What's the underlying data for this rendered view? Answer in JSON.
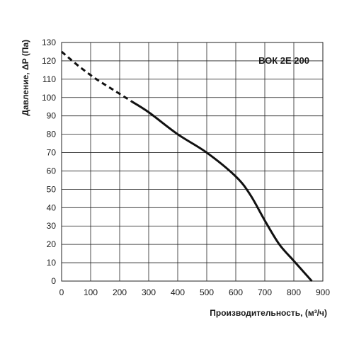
{
  "chart_data": {
    "type": "line",
    "title": "ВОК 2Е 200",
    "xlabel": "Производительность, (м³/ч)",
    "ylabel": "Давление, ΔP (Па)",
    "xlim": [
      0,
      900
    ],
    "ylim": [
      0,
      130
    ],
    "x_ticks": [
      "0",
      "100",
      "200",
      "300",
      "400",
      "500",
      "600",
      "700",
      "800",
      "900"
    ],
    "y_ticks": [
      "0",
      "10",
      "20",
      "30",
      "40",
      "50",
      "60",
      "70",
      "80",
      "90",
      "100",
      "110",
      "120",
      "130"
    ],
    "grid": true,
    "series": [
      {
        "style": "dashed",
        "x": [
          0,
          60,
          120,
          180,
          240
        ],
        "y": [
          125,
          117,
          110,
          104,
          98
        ]
      },
      {
        "style": "solid",
        "x": [
          240,
          300,
          400,
          500,
          600,
          650,
          700,
          750,
          800,
          862
        ],
        "y": [
          98,
          92,
          80,
          70,
          57,
          47,
          33,
          20,
          11,
          0
        ]
      }
    ],
    "colors": {
      "line": "#111111",
      "grid": "#222222"
    }
  }
}
